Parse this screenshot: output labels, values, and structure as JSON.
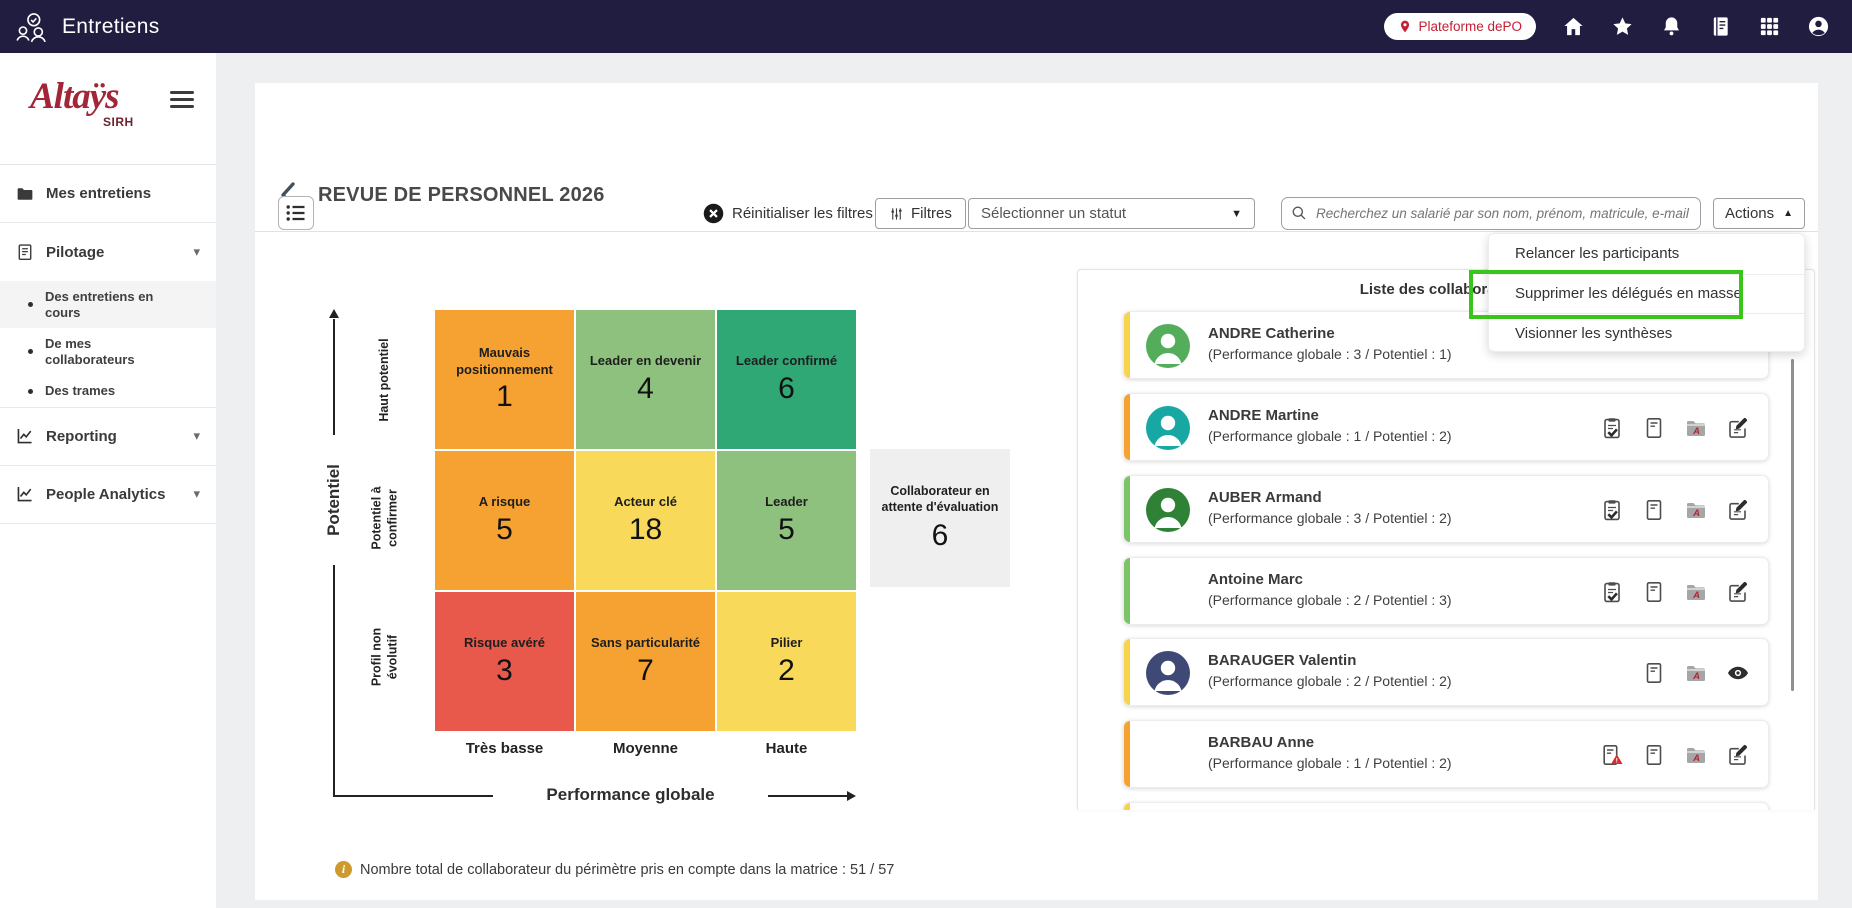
{
  "topbar": {
    "app_title": "Entretiens",
    "platform_badge": "Plateforme dePO",
    "icons": [
      "location-pin",
      "home",
      "star",
      "notifications",
      "journal",
      "apps-grid",
      "account"
    ]
  },
  "sidebar": {
    "logo_text": "Altaÿs",
    "logo_sub": "SIRH",
    "items": [
      {
        "label": "Mes entretiens",
        "icon": "folder"
      },
      {
        "label": "Pilotage",
        "icon": "clipboard",
        "expanded": true,
        "children": [
          "Des entretiens en cours",
          "De mes collaborateurs",
          "Des trames"
        ],
        "active_child": 0
      },
      {
        "label": "Reporting",
        "icon": "chart-line",
        "expanded": false
      },
      {
        "label": "People Analytics",
        "icon": "chart-line",
        "expanded": false
      }
    ]
  },
  "header": {
    "title": "REVUE DE PERSONNEL 2026"
  },
  "toolbar": {
    "reset_filters_label": "Réinitialiser les filtres",
    "filters_label": "Filtres",
    "status_placeholder": "Sélectionner un statut",
    "search_placeholder": "Recherchez un salarié par son nom, prénom, matricule, e-mail",
    "actions_label": "Actions"
  },
  "actions_menu": {
    "items": [
      "Relancer les participants",
      "Supprimer les délégués en masse",
      "Visionner les synthèses"
    ],
    "highlighted_index": 1,
    "highlight_color": "#3ac41c"
  },
  "matrix": {
    "y_axis_label": "Potentiel",
    "x_axis_label": "Performance globale",
    "row_labels": [
      "Haut potentiel",
      "Potentiel à confirmer",
      "Profil non évolutif"
    ],
    "col_labels": [
      "Très basse",
      "Moyenne",
      "Haute"
    ],
    "cells": [
      {
        "label": "Mauvais positionnement",
        "value": "1",
        "color": "#f6a233"
      },
      {
        "label": "Leader en devenir",
        "value": "4",
        "color": "#8ec17e"
      },
      {
        "label": "Leader confirmé",
        "value": "6",
        "color": "#2fa876"
      },
      {
        "label": "A risque",
        "value": "5",
        "color": "#f6a233"
      },
      {
        "label": "Acteur clé",
        "value": "18",
        "color": "#f8d95a"
      },
      {
        "label": "Leader",
        "value": "5",
        "color": "#8ec17e"
      },
      {
        "label": "Risque avéré",
        "value": "3",
        "color": "#e9594b"
      },
      {
        "label": "Sans particularité",
        "value": "7",
        "color": "#f6a233"
      },
      {
        "label": "Pilier",
        "value": "2",
        "color": "#f8d95a"
      }
    ],
    "pending_box": {
      "label": "Collaborateur en attente d'évaluation",
      "value": "6",
      "color": "#efefef"
    },
    "footnote_label": "Nombre total de collaborateur du périmètre pris en compte dans la matrice :",
    "footnote_value": "51 / 57"
  },
  "collaborators": {
    "title": "Liste des collaborateurs",
    "cards": [
      {
        "name": "ANDRE Catherine",
        "details": "(Performance globale : 3 / Potentiel : 1)",
        "border_color": "#f6d44c",
        "avatar_color": "#54ad5b",
        "icons": []
      },
      {
        "name": "ANDRE Martine",
        "details": "(Performance globale : 1 / Potentiel : 2)",
        "border_color": "#f6a230",
        "avatar_color": "#18a8a4",
        "icons": [
          "clipboard-check",
          "file-lines",
          "folder-a",
          "edit"
        ]
      },
      {
        "name": "AUBER Armand",
        "details": "(Performance globale : 3 / Potentiel : 2)",
        "border_color": "#7cc468",
        "avatar_color": "#2f8136",
        "icons": [
          "clipboard-check",
          "file-lines",
          "folder-a",
          "edit"
        ]
      },
      {
        "name": "Antoine Marc",
        "details": "(Performance globale : 2 / Potentiel : 3)",
        "border_color": "#7cc468",
        "avatar_color": null,
        "icons": [
          "clipboard-check",
          "file-lines",
          "folder-a",
          "edit"
        ]
      },
      {
        "name": "BARAUGER Valentin",
        "details": "(Performance globale : 2 / Potentiel : 2)",
        "border_color": "#f6d44c",
        "avatar_color": "#3e4a75",
        "icons": [
          "file-lines",
          "folder-a",
          "eye"
        ]
      },
      {
        "name": "BARBAU Anne",
        "details": "(Performance globale : 1 / Potentiel : 2)",
        "border_color": "#f6a230",
        "avatar_color": null,
        "icons": [
          "file-alert",
          "file-lines",
          "folder-a",
          "edit"
        ]
      },
      {
        "name": "",
        "details": "",
        "border_color": "#f6d44c",
        "avatar_color": null,
        "icons": [],
        "partial": true
      }
    ]
  }
}
